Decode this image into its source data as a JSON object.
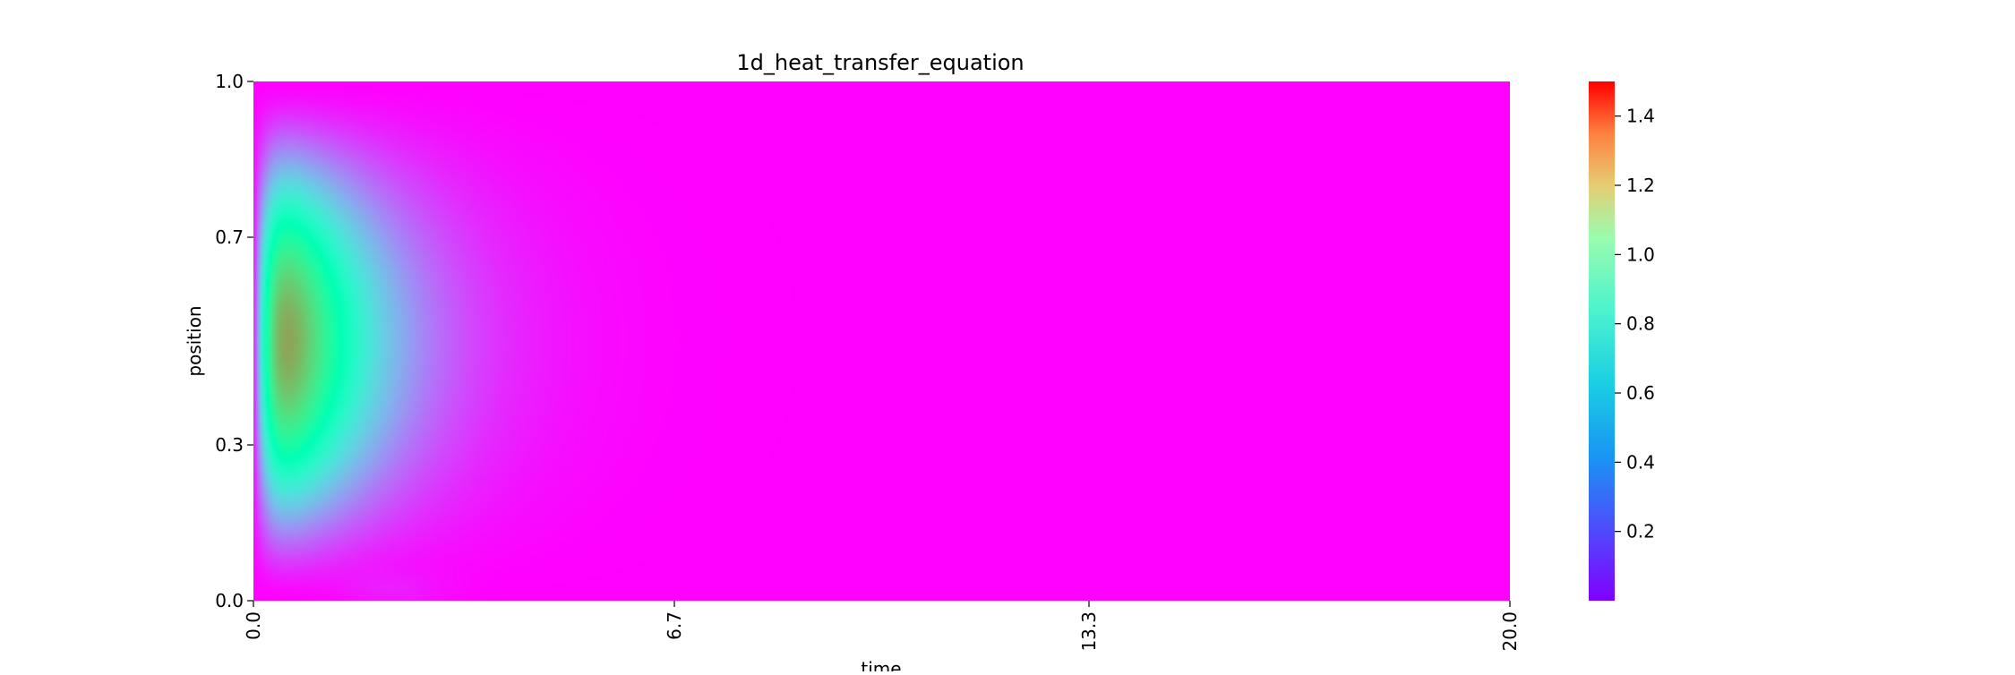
{
  "chart_data": {
    "type": "heatmap",
    "title": "1d_heat_transfer_equation",
    "xlabel": "time",
    "ylabel": "position",
    "x_ticks": [
      "0.0",
      "6.7",
      "13.3",
      "20.0"
    ],
    "x_tick_values": [
      0.0,
      6.7,
      13.3,
      20.0
    ],
    "y_ticks": [
      "1.0",
      "0.7",
      "0.3",
      "0.0"
    ],
    "y_tick_values": [
      1.0,
      0.7,
      0.3,
      0.0
    ],
    "xlim": [
      0,
      20
    ],
    "ylim": [
      0,
      1
    ],
    "colormap": "rainbow",
    "colorbar": {
      "ticks": [
        "1.4",
        "1.2",
        "1.0",
        "0.8",
        "0.6",
        "0.4",
        "0.2"
      ],
      "tick_values": [
        1.4,
        1.2,
        1.0,
        0.8,
        0.6,
        0.4,
        0.2
      ],
      "range": [
        0.0,
        1.5
      ]
    },
    "peak": {
      "time": 1.0,
      "position": 0.5,
      "value": 1.5
    },
    "grid": false
  }
}
